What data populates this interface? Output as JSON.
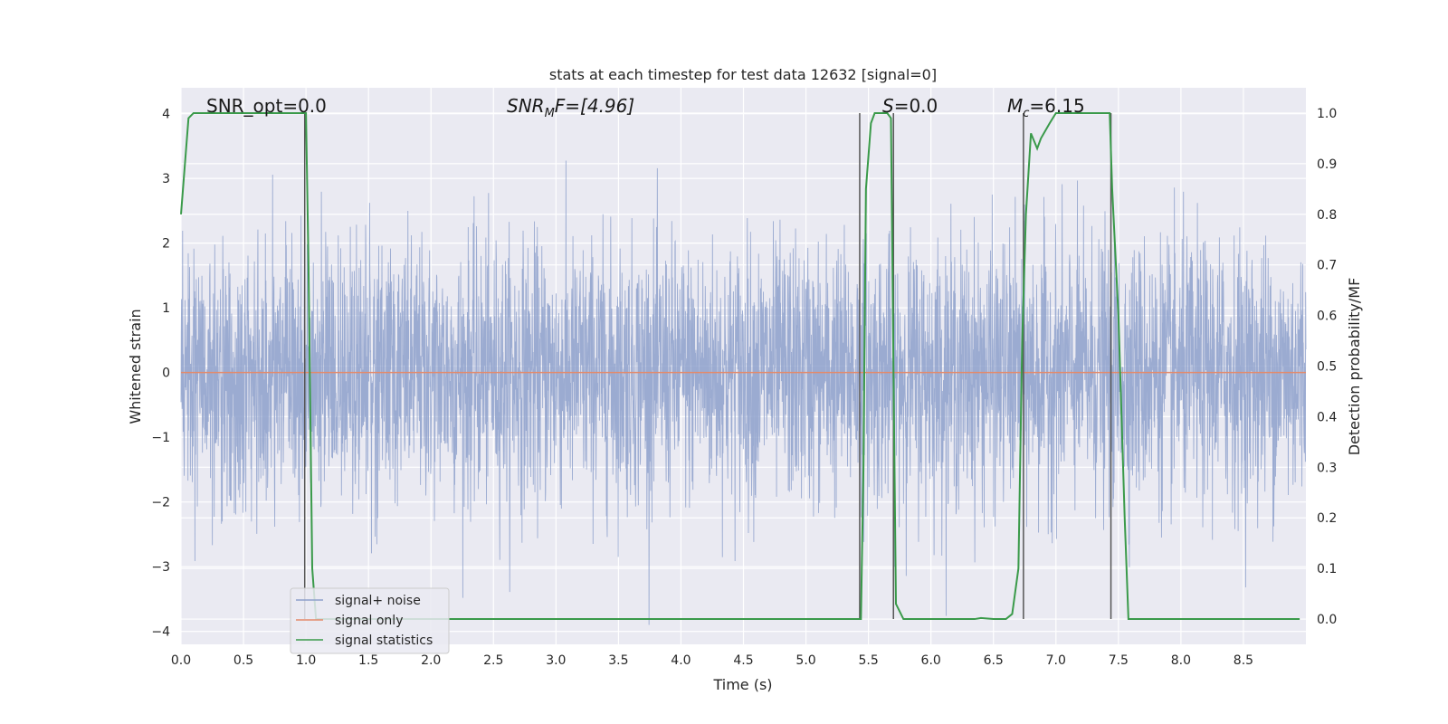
{
  "chart_data": {
    "type": "line",
    "title": "stats at each timestep for test data 12632 [signal=0]",
    "xlabel": "Time (s)",
    "ylabel_left": "Whitened strain",
    "ylabel_right": "Detection probability/MF",
    "xlim": [
      0,
      9
    ],
    "ylim_left": [
      -4.2,
      4.4
    ],
    "ylim_right": [
      -0.05,
      1.05
    ],
    "x_ticks": [
      "0.0",
      "0.5",
      "1.0",
      "1.5",
      "2.0",
      "2.5",
      "3.0",
      "3.5",
      "4.0",
      "4.5",
      "5.0",
      "5.5",
      "6.0",
      "6.5",
      "7.0",
      "7.5",
      "8.0",
      "8.5"
    ],
    "y_ticks_left": [
      "4",
      "3",
      "2",
      "1",
      "0",
      "−1",
      "−2",
      "−3",
      "−4"
    ],
    "y_ticks_right": [
      "1.0",
      "0.9",
      "0.8",
      "0.7",
      "0.6",
      "0.5",
      "0.4",
      "0.3",
      "0.2",
      "0.1",
      "0.0"
    ],
    "grid": true,
    "legend_position": "lower-left",
    "annotations": {
      "snr_opt": "SNR_opt=0.0",
      "snr_mf_label": "SNR",
      "snr_mf_sub": "M",
      "snr_mf_rest": "F=[4.96]",
      "s_label": "S",
      "s_rest": "=0.0",
      "mc_label": "M",
      "mc_sub": "c",
      "mc_rest": "=6.15"
    },
    "series": [
      {
        "name": "signal+ noise",
        "color": "#8da0cb",
        "axis": "left",
        "kind": "noise",
        "amplitude_std": 1.0
      },
      {
        "name": "signal only",
        "color": "#e38a6b",
        "axis": "left",
        "x": [
          0,
          9
        ],
        "y": [
          0,
          0
        ]
      },
      {
        "name": "signal statistics",
        "color": "#3a9a4a",
        "axis": "right",
        "x": [
          0,
          0.06,
          0.1,
          0.2,
          0.4,
          0.6,
          0.8,
          0.95,
          1.0,
          1.02,
          1.05,
          1.08,
          1.15,
          1.5,
          2.5,
          3.5,
          4.5,
          5.0,
          5.4,
          5.44,
          5.46,
          5.48,
          5.52,
          5.55,
          5.6,
          5.65,
          5.68,
          5.7,
          5.72,
          5.78,
          5.9,
          6.2,
          6.35,
          6.4,
          6.5,
          6.6,
          6.65,
          6.7,
          6.73,
          6.76,
          6.8,
          6.85,
          6.88,
          6.95,
          7.0,
          7.1,
          7.3,
          7.43,
          7.45,
          7.5,
          7.55,
          7.58,
          7.8,
          8.5,
          8.95
        ],
        "y": [
          0.8,
          0.99,
          1.0,
          1.0,
          1.0,
          1.0,
          1.0,
          1.0,
          1.0,
          0.7,
          0.1,
          0.0,
          0.0,
          0.0,
          0.0,
          0.0,
          0.0,
          0.0,
          0.0,
          0.0,
          0.3,
          0.85,
          0.98,
          1.0,
          1.0,
          1.0,
          0.99,
          0.5,
          0.03,
          0.0,
          0.0,
          0.0,
          0.0,
          0.002,
          0.0,
          0.0,
          0.01,
          0.1,
          0.55,
          0.8,
          0.96,
          0.93,
          0.95,
          0.98,
          1.0,
          1.0,
          1.0,
          1.0,
          0.85,
          0.6,
          0.2,
          0.0,
          0.0,
          0.0,
          0.0
        ]
      }
    ],
    "vertical_markers": [
      {
        "x": 0.99,
        "color": "#555555"
      },
      {
        "x": 5.43,
        "color": "#555555"
      },
      {
        "x": 5.7,
        "color": "#555555"
      },
      {
        "x": 6.74,
        "color": "#555555"
      },
      {
        "x": 7.44,
        "color": "#555555"
      }
    ]
  }
}
